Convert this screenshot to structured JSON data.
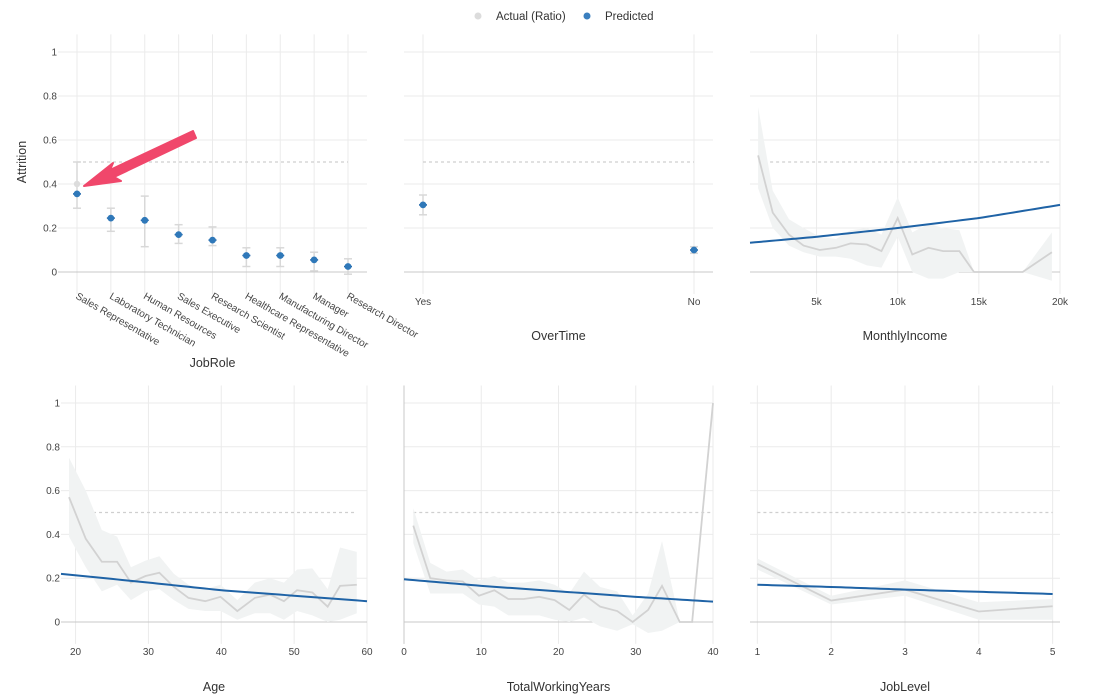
{
  "legend": {
    "position": "top",
    "items": [
      {
        "label": "Actual (Ratio)",
        "color": "#dcdcdc"
      },
      {
        "label": "Predicted",
        "color": "#3a7fbf"
      }
    ]
  },
  "colors": {
    "predicted": "#1f63a6",
    "actual": "#d2d2d2",
    "ribbon": "#f1f3f3",
    "grid": "#ebebeb",
    "threshold": "#cfcfcf",
    "arrow": "#f0476b"
  },
  "chart_data": [
    {
      "type": "scatter",
      "xlabel": "JobRole",
      "ylabel": "Attrition",
      "ylim": [
        -0.1,
        1.05
      ],
      "yticks": [
        "0",
        "0.2",
        "0.4",
        "0.6",
        "0.8",
        "1"
      ],
      "threshold": 0.5,
      "grid": true,
      "categories": [
        "Sales Representative",
        "Laboratory Technician",
        "Human Resources",
        "Sales Executive",
        "Research Scientist",
        "Healthcare Representative",
        "Manufacturing Director",
        "Manager",
        "Research Director"
      ],
      "predicted": [
        0.355,
        0.245,
        0.235,
        0.17,
        0.145,
        0.075,
        0.075,
        0.055,
        0.025
      ],
      "actual": [
        0.4,
        0.245,
        0.235,
        0.17,
        0.145,
        0.075,
        0.075,
        0.055,
        0.025
      ],
      "lower": [
        0.29,
        0.185,
        0.115,
        0.13,
        0.12,
        0.025,
        0.025,
        0.005,
        -0.01
      ],
      "upper": [
        0.5,
        0.29,
        0.345,
        0.215,
        0.205,
        0.11,
        0.11,
        0.09,
        0.06
      ],
      "annotation": "arrow pointing to Sales Representative"
    },
    {
      "type": "scatter",
      "xlabel": "OverTime",
      "ylim": [
        -0.1,
        1.05
      ],
      "threshold": 0.5,
      "grid": true,
      "categories": [
        "Yes",
        "No"
      ],
      "predicted": [
        0.305,
        0.1
      ],
      "actual": [
        0.305,
        0.1
      ],
      "lower": [
        0.26,
        0.085
      ],
      "upper": [
        0.35,
        0.115
      ]
    },
    {
      "type": "line",
      "xlabel": "MonthlyIncome",
      "xlim": [
        900,
        20000
      ],
      "ylim": [
        -0.1,
        1.05
      ],
      "threshold": 0.5,
      "grid": true,
      "xticks": [
        {
          "v": 5000,
          "label": "5k"
        },
        {
          "v": 10000,
          "label": "10k"
        },
        {
          "v": 15000,
          "label": "15k"
        },
        {
          "v": 20000,
          "label": "20k"
        }
      ],
      "actual": {
        "x": [
          1400,
          2300,
          3300,
          4200,
          5200,
          6200,
          7100,
          8100,
          9000,
          10000,
          10900,
          11900,
          12800,
          13800,
          14700,
          17700,
          19500
        ],
        "y": [
          0.53,
          0.27,
          0.17,
          0.12,
          0.1,
          0.11,
          0.13,
          0.125,
          0.095,
          0.245,
          0.08,
          0.11,
          0.095,
          0.095,
          0,
          0,
          0.09
        ],
        "lower": [
          0.38,
          0.2,
          0.12,
          0.09,
          0.07,
          0.07,
          0.06,
          0.03,
          0.02,
          0.16,
          0,
          -0.03,
          -0.03,
          0,
          0,
          0,
          -0.04
        ],
        "upper": [
          0.75,
          0.37,
          0.24,
          0.2,
          0.16,
          0.15,
          0.19,
          0.2,
          0.17,
          0.34,
          0.18,
          0.22,
          0.2,
          0.19,
          0,
          0,
          0.18
        ]
      },
      "predicted": {
        "x": [
          900,
          5000,
          10000,
          15000,
          20000
        ],
        "y": [
          0.133,
          0.16,
          0.2,
          0.245,
          0.305
        ]
      }
    },
    {
      "type": "line",
      "xlabel": "Age",
      "xlim": [
        18,
        60
      ],
      "ylim": [
        -0.1,
        1.05
      ],
      "yticks": [
        "0",
        "0.2",
        "0.4",
        "0.6",
        "0.8",
        "1"
      ],
      "threshold": 0.5,
      "grid": true,
      "xticks": [
        {
          "v": 20,
          "label": "20"
        },
        {
          "v": 30,
          "label": "30"
        },
        {
          "v": 40,
          "label": "40"
        },
        {
          "v": 50,
          "label": "50"
        },
        {
          "v": 60,
          "label": "60"
        }
      ],
      "actual": {
        "x": [
          19.1,
          21.4,
          23.6,
          25.7,
          27.6,
          29.6,
          31.5,
          33.5,
          35.5,
          37.8,
          39.9,
          42.2,
          44.6,
          46.7,
          48.6,
          50.4,
          52.5,
          54.6,
          56.3,
          58.6
        ],
        "y": [
          0.57,
          0.38,
          0.275,
          0.275,
          0.18,
          0.21,
          0.225,
          0.16,
          0.11,
          0.095,
          0.115,
          0.05,
          0.11,
          0.125,
          0.095,
          0.145,
          0.135,
          0.07,
          0.165,
          0.17
        ],
        "lower": [
          0.39,
          0.25,
          0.14,
          0.17,
          0.1,
          0.14,
          0.15,
          0.1,
          0.06,
          0.05,
          0.05,
          0.01,
          0.04,
          0.04,
          0.01,
          0.05,
          0.03,
          0,
          0.01,
          0.04
        ],
        "upper": [
          0.75,
          0.6,
          0.42,
          0.39,
          0.25,
          0.28,
          0.3,
          0.22,
          0.17,
          0.15,
          0.17,
          0.1,
          0.18,
          0.2,
          0.18,
          0.24,
          0.245,
          0.15,
          0.34,
          0.32
        ]
      },
      "predicted": {
        "x": [
          18,
          30,
          40,
          50,
          60
        ],
        "y": [
          0.22,
          0.18,
          0.145,
          0.12,
          0.095
        ]
      }
    },
    {
      "type": "line",
      "xlabel": "TotalWorkingYears",
      "xlim": [
        0,
        40
      ],
      "ylim": [
        -0.1,
        1.05
      ],
      "threshold": 0.5,
      "grid": true,
      "xticks": [
        {
          "v": 0,
          "label": "0"
        },
        {
          "v": 10,
          "label": "10"
        },
        {
          "v": 20,
          "label": "20"
        },
        {
          "v": 30,
          "label": "30"
        },
        {
          "v": 40,
          "label": "40"
        }
      ],
      "actual": {
        "x": [
          1.2,
          3.4,
          5.5,
          7.6,
          9.7,
          11.7,
          13.5,
          15.5,
          17.5,
          19.5,
          21.4,
          23.3,
          25.4,
          27.6,
          29.6,
          31.6,
          33.4,
          35.7,
          37.3,
          40
        ],
        "y": [
          0.44,
          0.2,
          0.19,
          0.185,
          0.12,
          0.145,
          0.105,
          0.105,
          0.115,
          0.1,
          0.055,
          0.125,
          0.07,
          0.05,
          0,
          0.055,
          0.165,
          0,
          0,
          1
        ],
        "lower": [
          0.36,
          0.13,
          0.13,
          0.13,
          0.08,
          0.07,
          0.03,
          0.03,
          0.03,
          0.01,
          0,
          0.02,
          -0.02,
          -0.04,
          -0.01,
          -0.05,
          -0.04,
          0,
          0,
          1
        ],
        "upper": [
          0.52,
          0.27,
          0.23,
          0.24,
          0.19,
          0.21,
          0.18,
          0.18,
          0.19,
          0.17,
          0.13,
          0.23,
          0.16,
          0.14,
          0.03,
          0.13,
          0.37,
          0,
          0,
          1
        ]
      },
      "predicted": {
        "x": [
          0,
          10,
          20,
          30,
          40
        ],
        "y": [
          0.195,
          0.165,
          0.14,
          0.115,
          0.093
        ]
      }
    },
    {
      "type": "line",
      "xlabel": "JobLevel",
      "xlim": [
        0.9,
        5.1
      ],
      "ylim": [
        -0.1,
        1.05
      ],
      "threshold": 0.5,
      "grid": true,
      "xticks": [
        {
          "v": 1,
          "label": "1"
        },
        {
          "v": 2,
          "label": "2"
        },
        {
          "v": 3,
          "label": "3"
        },
        {
          "v": 4,
          "label": "4"
        },
        {
          "v": 5,
          "label": "5"
        }
      ],
      "actual": {
        "x": [
          1,
          2,
          3,
          4,
          5
        ],
        "y": [
          0.265,
          0.098,
          0.148,
          0.048,
          0.072
        ],
        "lower": [
          0.24,
          0.08,
          0.12,
          0.01,
          0.01
        ],
        "upper": [
          0.29,
          0.12,
          0.19,
          0.09,
          0.105
        ]
      },
      "predicted": {
        "x": [
          1,
          2,
          3,
          4,
          5
        ],
        "y": [
          0.17,
          0.16,
          0.148,
          0.138,
          0.128
        ]
      }
    }
  ]
}
